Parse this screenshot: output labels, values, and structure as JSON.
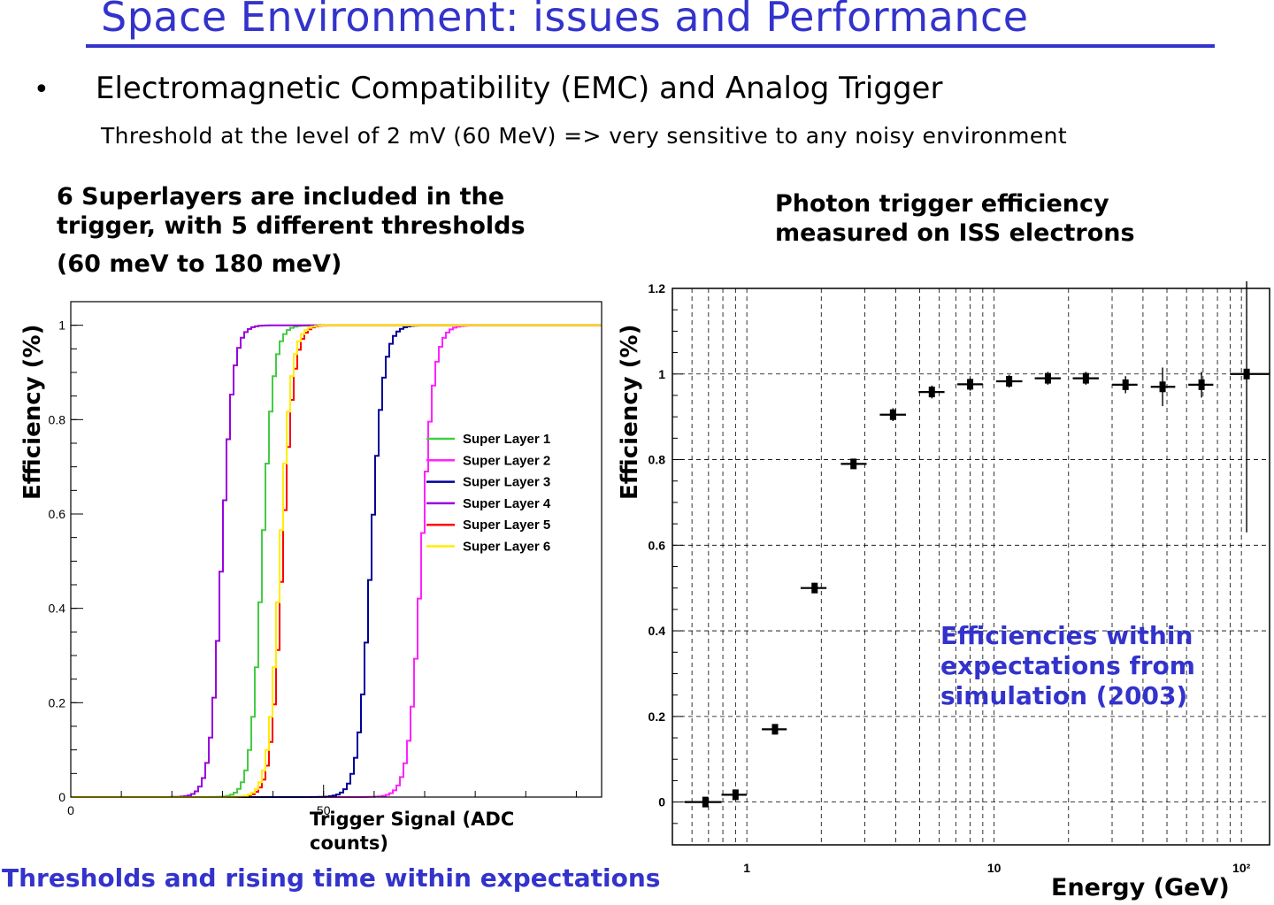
{
  "slide": {
    "title": "Space Environment: issues and Performance",
    "bullet_symbol": "•",
    "bullet": "Electromagnetic Compatibility (EMC) and Analog Trigger",
    "subtext": "Threshold at the level of 2 mV (60 MeV) => very sensitive to any noisy environment",
    "left_heading": "6 Superlayers are included in the trigger, with 5 different thresholds",
    "left_heading_2": "(60 meV to 180 meV)",
    "right_heading": "Photon trigger efficiency measured on ISS electrons",
    "left_ylabel": "Efficiency (%)",
    "right_ylabel": "Efficiency (%)",
    "left_xlabel": "Trigger Signal (ADC counts)",
    "right_xlabel": "Energy (GeV)",
    "footer_left": "Thresholds and rising time  within expectations",
    "annotation": "Efficiencies within expectations from simulation (2003)"
  },
  "colors": {
    "accent": "#3333cc"
  },
  "chart_data": [
    {
      "type": "line",
      "xlim": [
        0,
        105
      ],
      "ylim": [
        0,
        1.05
      ],
      "x_ticks": [
        "0",
        "50"
      ],
      "y_ticks": [
        "0",
        "0.2",
        "0.4",
        "0.6",
        "0.8",
        "1"
      ],
      "legend_position": "right",
      "series": [
        {
          "name": "Super Layer 1",
          "color": "#44cc44",
          "threshold": 37.5,
          "width": 5
        },
        {
          "name": "Super Layer 2",
          "color": "#ff22ff",
          "threshold": 69,
          "width": 5.5
        },
        {
          "name": "Super Layer 3",
          "color": "#000099",
          "threshold": 59,
          "width": 5.5
        },
        {
          "name": "Super Layer 4",
          "color": "#9900dd",
          "threshold": 29.5,
          "width": 5
        },
        {
          "name": "Super Layer 5",
          "color": "#ff0000",
          "threshold": 41.5,
          "width": 5
        },
        {
          "name": "Super Layer 6",
          "color": "#ffee00",
          "threshold": 41,
          "width": 5
        }
      ]
    },
    {
      "type": "scatter",
      "x_scale": "log",
      "xlim": [
        0.5,
        130
      ],
      "ylim": [
        -0.1,
        1.2
      ],
      "x_ticks": [
        "1",
        "10",
        "10²"
      ],
      "y_ticks": [
        "0",
        "0.2",
        "0.4",
        "0.6",
        "0.8",
        "1",
        "1.2"
      ],
      "grid": true,
      "points": [
        {
          "x": 0.68,
          "xlo": 0.56,
          "xhi": 0.79,
          "y": 0.0,
          "err": 0.012
        },
        {
          "x": 0.9,
          "xlo": 0.79,
          "xhi": 1.0,
          "y": 0.017,
          "err": 0.012
        },
        {
          "x": 1.3,
          "xlo": 1.15,
          "xhi": 1.45,
          "y": 0.17,
          "err": 0.012
        },
        {
          "x": 1.88,
          "xlo": 1.65,
          "xhi": 2.1,
          "y": 0.5,
          "err": 0.012
        },
        {
          "x": 2.7,
          "xlo": 2.4,
          "xhi": 3.05,
          "y": 0.79,
          "err": 0.012
        },
        {
          "x": 3.9,
          "xlo": 3.45,
          "xhi": 4.4,
          "y": 0.905,
          "err": 0.015
        },
        {
          "x": 5.6,
          "xlo": 4.95,
          "xhi": 6.3,
          "y": 0.958,
          "err": 0.015
        },
        {
          "x": 8.0,
          "xlo": 7.1,
          "xhi": 9.0,
          "y": 0.976,
          "err": 0.015
        },
        {
          "x": 11.5,
          "xlo": 10.2,
          "xhi": 13.0,
          "y": 0.983,
          "err": 0.015
        },
        {
          "x": 16.5,
          "xlo": 14.6,
          "xhi": 18.6,
          "y": 0.99,
          "err": 0.015
        },
        {
          "x": 23.5,
          "xlo": 20.8,
          "xhi": 26.5,
          "y": 0.99,
          "err": 0.015
        },
        {
          "x": 34,
          "xlo": 30,
          "xhi": 38,
          "y": 0.975,
          "err": 0.02
        },
        {
          "x": 48,
          "xlo": 43,
          "xhi": 54,
          "y": 0.97,
          "err": 0.045
        },
        {
          "x": 69,
          "xlo": 61,
          "xhi": 77,
          "y": 0.975,
          "err": 0.03
        },
        {
          "x": 105,
          "xlo": 90,
          "xhi": 130,
          "y": 1.0,
          "err": 0.37
        }
      ]
    }
  ]
}
